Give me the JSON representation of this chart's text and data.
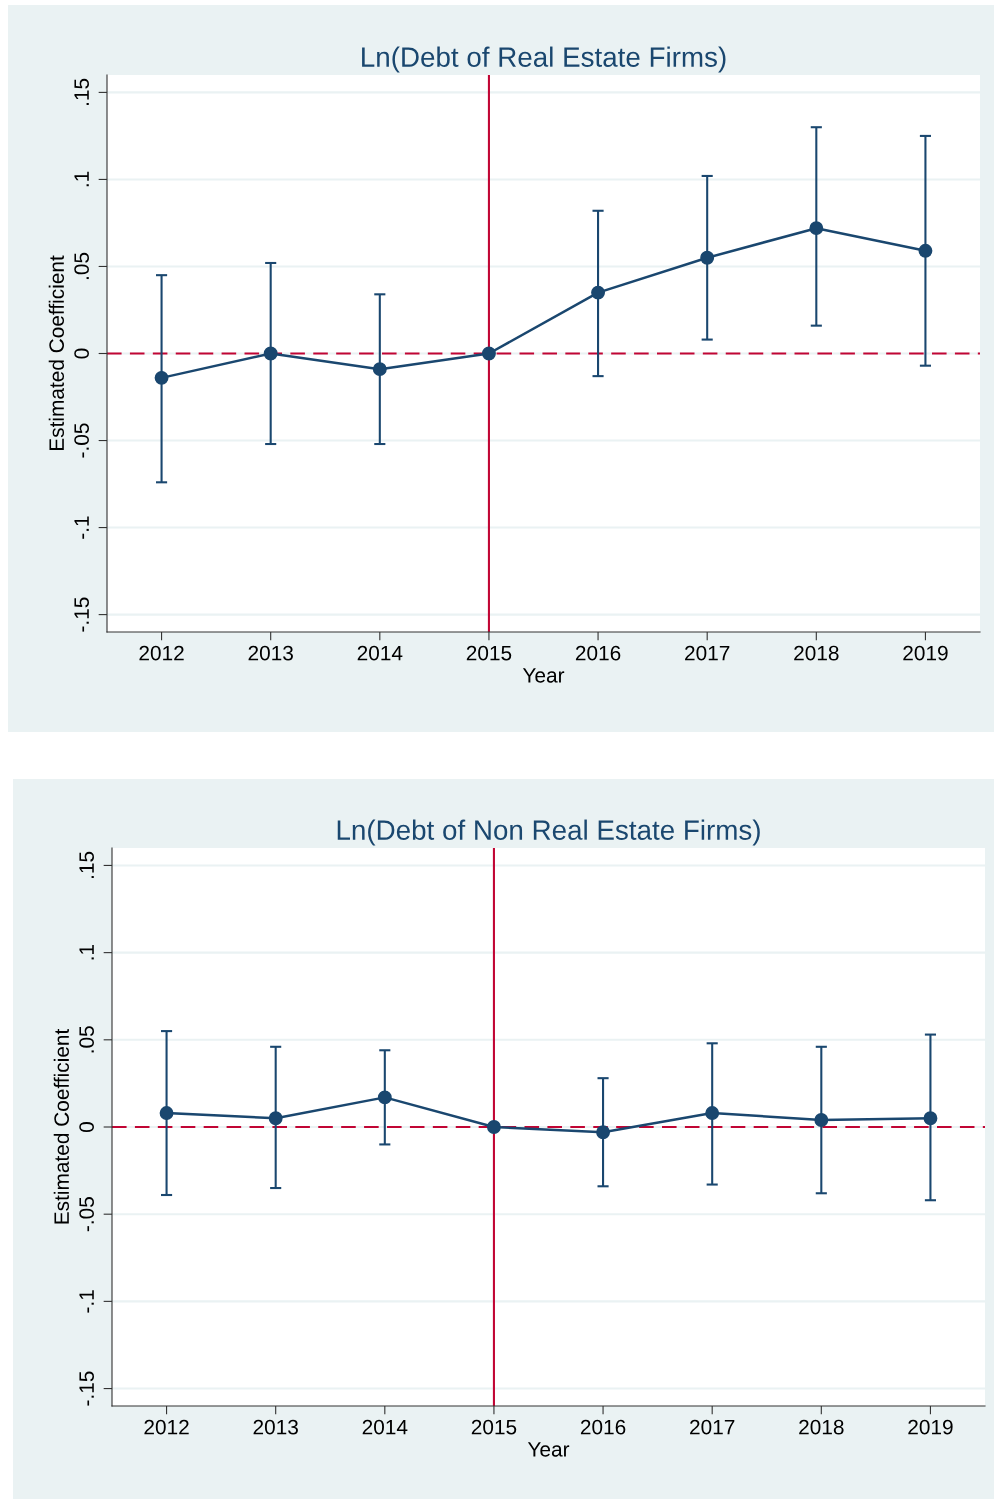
{
  "chart_data": [
    {
      "type": "line",
      "title": "Ln(Debt of Real Estate Firms)",
      "xlabel": "Year",
      "ylabel": "Estimated Coefficient",
      "categories": [
        "2012",
        "2013",
        "2014",
        "2015",
        "2016",
        "2017",
        "2018",
        "2019"
      ],
      "series": [
        {
          "color": "#1a476f",
          "values": [
            -0.014,
            0.0,
            -0.009,
            0.0,
            0.035,
            0.055,
            0.072,
            0.059
          ],
          "errors": [
            [
              -0.074,
              0.045
            ],
            [
              -0.052,
              0.052
            ],
            [
              -0.052,
              0.034
            ],
            null,
            [
              -0.013,
              0.082
            ],
            [
              0.008,
              0.102
            ],
            [
              0.016,
              0.13
            ],
            [
              -0.007,
              0.125
            ]
          ]
        }
      ],
      "ylim": [
        -0.16,
        0.16
      ],
      "yticks": [
        {
          "value": -0.15,
          "label": "-.15"
        },
        {
          "value": -0.1,
          "label": "-.1"
        },
        {
          "value": -0.05,
          "label": "-.05"
        },
        0,
        {
          "value": 0.05,
          "label": ".05"
        },
        {
          "value": 0.1,
          "label": ".1"
        },
        {
          "value": 0.15,
          "label": ".15"
        }
      ],
      "ref_lines": [
        {
          "axis": "y",
          "value": 0,
          "color": "#c10534",
          "line_style": "dashed"
        },
        {
          "axis": "x",
          "value": "2015",
          "color": "#c10534",
          "line_style": "solid"
        }
      ],
      "grid": "y",
      "marker": "circle",
      "line_style": "solid"
    },
    {
      "type": "line",
      "title": "Ln(Debt of Non Real Estate Firms)",
      "xlabel": "Year",
      "ylabel": "Estimated Coefficient",
      "categories": [
        "2012",
        "2013",
        "2014",
        "2015",
        "2016",
        "2017",
        "2018",
        "2019"
      ],
      "series": [
        {
          "color": "#1a476f",
          "values": [
            0.008,
            0.005,
            0.017,
            0.0,
            -0.003,
            0.008,
            0.004,
            0.005
          ],
          "errors": [
            [
              -0.039,
              0.055
            ],
            [
              -0.035,
              0.046
            ],
            [
              -0.01,
              0.044
            ],
            null,
            [
              -0.034,
              0.028
            ],
            [
              -0.033,
              0.048
            ],
            [
              -0.038,
              0.046
            ],
            [
              -0.042,
              0.053
            ]
          ]
        }
      ],
      "ylim": [
        -0.16,
        0.16
      ],
      "yticks": [
        {
          "value": -0.15,
          "label": "-.15"
        },
        {
          "value": -0.1,
          "label": "-.1"
        },
        {
          "value": -0.05,
          "label": "-.05"
        },
        0,
        {
          "value": 0.05,
          "label": ".05"
        },
        {
          "value": 0.1,
          "label": ".1"
        },
        {
          "value": 0.15,
          "label": ".15"
        }
      ],
      "ref_lines": [
        {
          "axis": "y",
          "value": 0,
          "color": "#c10534",
          "line_style": "dashed"
        },
        {
          "axis": "x",
          "value": "2015",
          "color": "#c10534",
          "line_style": "solid"
        }
      ],
      "grid": "y",
      "marker": "circle",
      "line_style": "solid"
    }
  ]
}
